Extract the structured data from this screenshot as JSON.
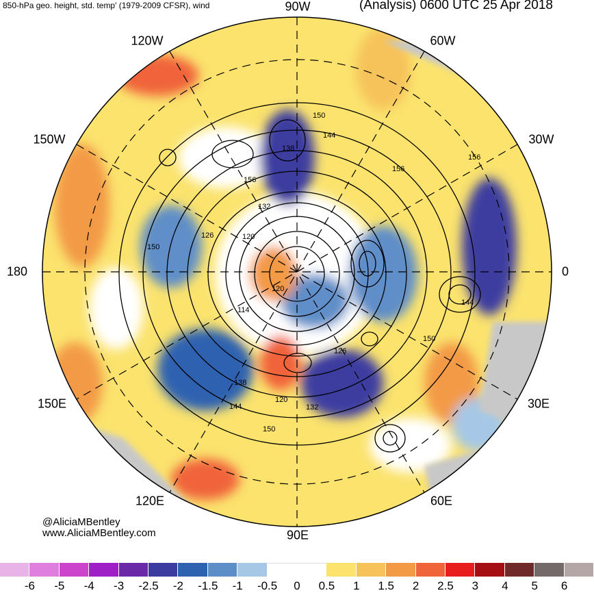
{
  "header": {
    "left": "850-hPa geo. height, std. temp' (1979-2009 CFSR), wind",
    "right": "(Analysis) 0600 UTC 25 Apr 2018"
  },
  "longitudes": {
    "top": "90W",
    "top_left": "120W",
    "top_right": "60W",
    "upper_left": "150W",
    "upper_right": "30W",
    "left": "180",
    "right": "0",
    "lower_left": "150E",
    "lower_right": "30E",
    "bottom_left": "120E",
    "bottom_right": "60E",
    "bottom": "90E"
  },
  "contour_labels": [
    "150",
    "144",
    "138",
    "156",
    "156",
    "156",
    "132",
    "126",
    "120",
    "150",
    "120",
    "114",
    "144",
    "150",
    "126",
    "138",
    "144",
    "120",
    "132",
    "150"
  ],
  "credit": {
    "handle": "@AliciaMBentley",
    "site": "www.AliciaMBentley.com"
  },
  "colorbar": {
    "ticks": [
      "-6",
      "-5",
      "-4",
      "-3",
      "-2.5",
      "-2",
      "-1.5",
      "-1",
      "-0.5",
      "0",
      "0.5",
      "1",
      "1.5",
      "2",
      "2.5",
      "3",
      "4",
      "5",
      "6"
    ],
    "colors": [
      "#e8b4e8",
      "#e07ee0",
      "#cc44cc",
      "#a020c8",
      "#6a2aa8",
      "#3c3ca0",
      "#2e62b0",
      "#5e8ec8",
      "#a6c8e6",
      "#ffffff",
      "#ffffff",
      "#fbe36e",
      "#f6c25a",
      "#f39a46",
      "#f0643a",
      "#e81e1e",
      "#a50f14",
      "#6e2a2a",
      "#756a6a",
      "#b4a6a6"
    ]
  },
  "colors": {
    "land": "#c8c8c8",
    "contour": "#000000"
  }
}
